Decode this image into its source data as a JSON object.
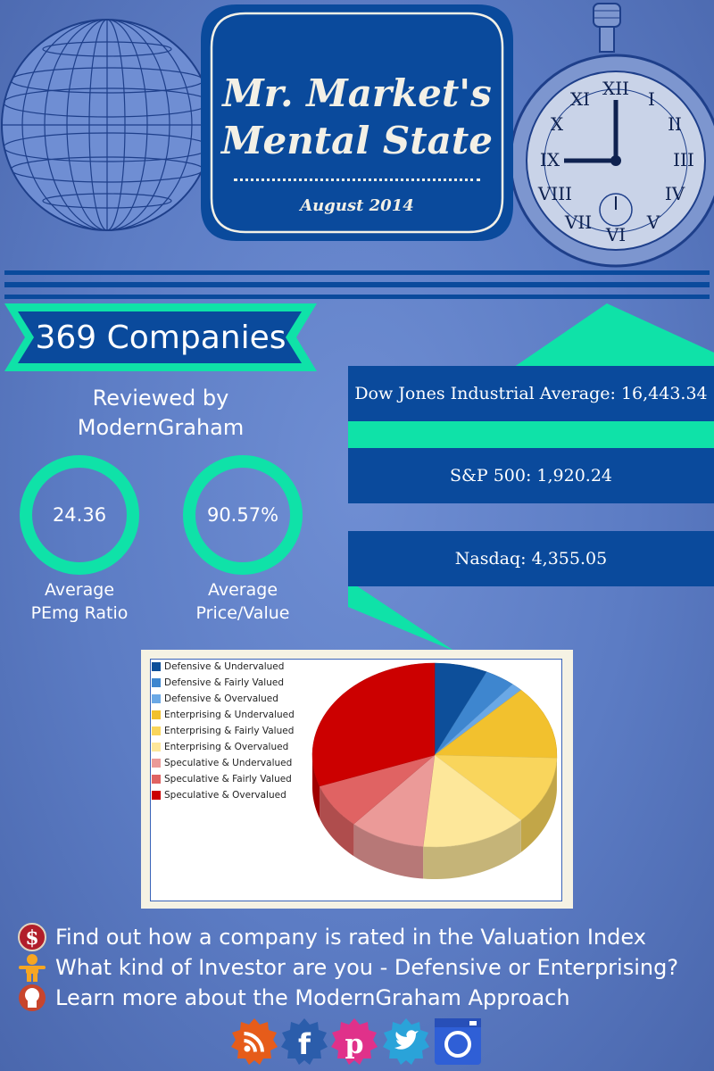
{
  "title": {
    "line1": "Mr. Market's",
    "line2": "Mental State",
    "date": "August 2014"
  },
  "companies_label": "369 Companies",
  "reviewed_by": [
    "Reviewed by",
    "ModernGraham"
  ],
  "metrics": [
    {
      "value": "24.36",
      "label": [
        "Average",
        "PEmg Ratio"
      ]
    },
    {
      "value": "90.57%",
      "label": [
        "Average",
        "Price/Value"
      ]
    }
  ],
  "indices": [
    {
      "text": "Dow Jones Industrial Average:  16,443.34"
    },
    {
      "text": "S&P 500:  1,920.24"
    },
    {
      "text": "Nasdaq:  4,355.05"
    }
  ],
  "colors": {
    "accent": "#0fe2a8",
    "navy": "#0a4a9c",
    "background": "#5c7cc4"
  },
  "chart_data": {
    "type": "pie",
    "title": "",
    "legend_position": "top-left",
    "categories": [
      "Defensive & Undervalued",
      "Defensive & Fairly Valued",
      "Defensive & Overvalued",
      "Enterprising & Undervalued",
      "Enterprising & Fairly Valued",
      "Enterprising & Overvalued",
      "Speculative & Undervalued",
      "Speculative & Fairly Valued",
      "Speculative & Overvalued"
    ],
    "values": [
      7,
      4,
      1.5,
      13,
      12,
      14,
      10,
      8,
      30.5
    ],
    "colors": [
      "#0d4f9a",
      "#3e86cf",
      "#6aa8e6",
      "#f2c12e",
      "#f9d55c",
      "#fde79a",
      "#eb9a98",
      "#e06363",
      "#cc0000"
    ]
  },
  "links": [
    {
      "icon": "dollar-icon",
      "text": "Find out how a company is rated in the Valuation Index"
    },
    {
      "icon": "investor-icon",
      "text": "What kind of Investor are you - Defensive or Enterprising?"
    },
    {
      "icon": "head-icon",
      "text": "Learn more about the ModernGraham Approach"
    }
  ],
  "social": [
    {
      "icon": "rss-icon",
      "color": "#e65c1a"
    },
    {
      "icon": "facebook-icon",
      "color": "#2b5dab"
    },
    {
      "icon": "pinterest-icon",
      "color": "#e0318a"
    },
    {
      "icon": "twitter-icon",
      "color": "#2aa3d9"
    },
    {
      "icon": "instagram-icon",
      "color": "#2f5fd6"
    }
  ]
}
